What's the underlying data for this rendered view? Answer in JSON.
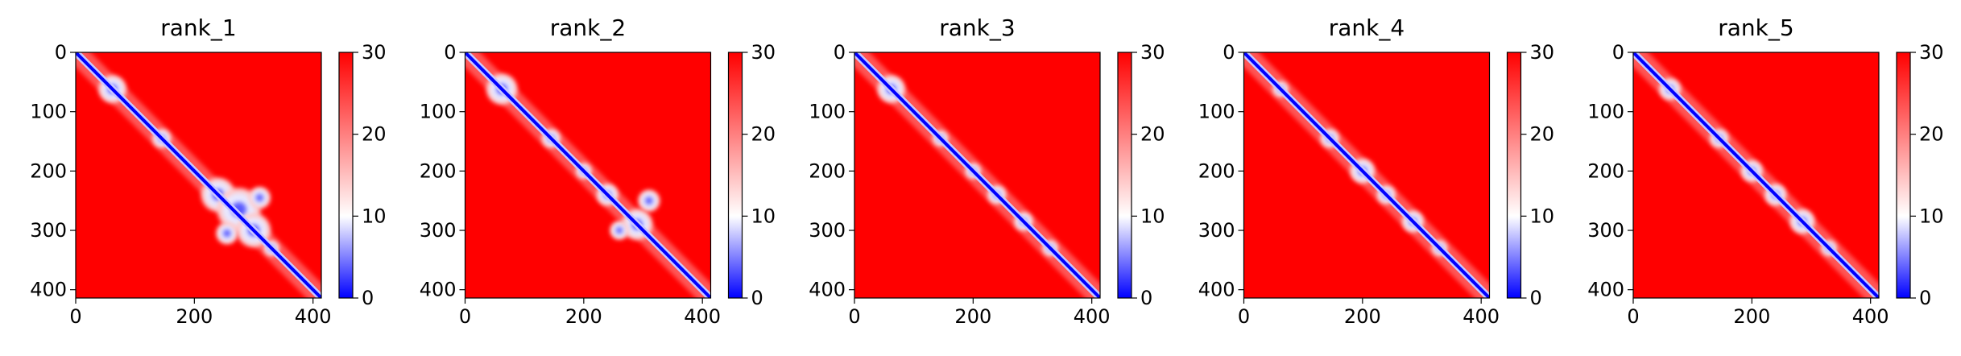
{
  "chart_data": [
    {
      "type": "heatmap",
      "title": "rank_1",
      "x_range": [
        0,
        414
      ],
      "y_range": [
        0,
        414
      ],
      "y_inverted": true,
      "x_ticks": [
        0,
        200,
        400
      ],
      "y_ticks": [
        0,
        100,
        200,
        300,
        400
      ],
      "colorbar": {
        "range": [
          0,
          30
        ],
        "ticks": [
          0,
          10,
          20,
          30
        ],
        "colormap": "bwr",
        "colors": [
          "#0000ff",
          "#ffffff",
          "#ff0000"
        ]
      },
      "low_distance_blocks": [
        [
          62,
          62,
          18
        ],
        [
          145,
          145,
          12
        ],
        [
          240,
          240,
          22
        ],
        [
          275,
          265,
          28
        ],
        [
          300,
          300,
          22
        ],
        [
          310,
          245,
          14
        ],
        [
          255,
          305,
          14
        ],
        [
          330,
          330,
          10
        ]
      ]
    },
    {
      "type": "heatmap",
      "title": "rank_2",
      "x_range": [
        0,
        414
      ],
      "y_range": [
        0,
        414
      ],
      "y_inverted": true,
      "x_ticks": [
        0,
        200,
        400
      ],
      "y_ticks": [
        0,
        100,
        200,
        300,
        400
      ],
      "colorbar": {
        "range": [
          0,
          30
        ],
        "ticks": [
          0,
          10,
          20,
          30
        ],
        "colormap": "bwr",
        "colors": [
          "#0000ff",
          "#ffffff",
          "#ff0000"
        ]
      },
      "low_distance_blocks": [
        [
          62,
          62,
          20
        ],
        [
          145,
          145,
          12
        ],
        [
          200,
          200,
          10
        ],
        [
          240,
          240,
          14
        ],
        [
          290,
          290,
          20
        ],
        [
          310,
          250,
          14
        ],
        [
          260,
          300,
          12
        ]
      ]
    },
    {
      "type": "heatmap",
      "title": "rank_3",
      "x_range": [
        0,
        414
      ],
      "y_range": [
        0,
        414
      ],
      "y_inverted": true,
      "x_ticks": [
        0,
        200,
        400
      ],
      "y_ticks": [
        0,
        100,
        200,
        300,
        400
      ],
      "colorbar": {
        "range": [
          0,
          30
        ],
        "ticks": [
          0,
          10,
          20,
          30
        ],
        "colormap": "bwr",
        "colors": [
          "#0000ff",
          "#ffffff",
          "#ff0000"
        ]
      },
      "low_distance_blocks": [
        [
          62,
          62,
          18
        ],
        [
          145,
          145,
          10
        ],
        [
          200,
          200,
          10
        ],
        [
          240,
          240,
          12
        ],
        [
          285,
          285,
          12
        ],
        [
          330,
          330,
          10
        ]
      ]
    },
    {
      "type": "heatmap",
      "title": "rank_4",
      "x_range": [
        0,
        414
      ],
      "y_range": [
        0,
        414
      ],
      "y_inverted": true,
      "x_ticks": [
        0,
        200,
        400
      ],
      "y_ticks": [
        0,
        100,
        200,
        300,
        400
      ],
      "colorbar": {
        "range": [
          0,
          30
        ],
        "ticks": [
          0,
          10,
          20,
          30
        ],
        "colormap": "bwr",
        "colors": [
          "#0000ff",
          "#ffffff",
          "#ff0000"
        ]
      },
      "low_distance_blocks": [
        [
          62,
          62,
          10
        ],
        [
          145,
          145,
          12
        ],
        [
          200,
          200,
          16
        ],
        [
          240,
          240,
          12
        ],
        [
          285,
          285,
          14
        ],
        [
          330,
          330,
          10
        ]
      ]
    },
    {
      "type": "heatmap",
      "title": "rank_5",
      "x_range": [
        0,
        414
      ],
      "y_range": [
        0,
        414
      ],
      "y_inverted": true,
      "x_ticks": [
        0,
        200,
        400
      ],
      "y_ticks": [
        0,
        100,
        200,
        300,
        400
      ],
      "colorbar": {
        "range": [
          0,
          30
        ],
        "ticks": [
          0,
          10,
          20,
          30
        ],
        "colormap": "bwr",
        "colors": [
          "#0000ff",
          "#ffffff",
          "#ff0000"
        ]
      },
      "low_distance_blocks": [
        [
          62,
          62,
          14
        ],
        [
          145,
          145,
          12
        ],
        [
          200,
          200,
          14
        ],
        [
          240,
          240,
          14
        ],
        [
          285,
          285,
          16
        ],
        [
          330,
          330,
          10
        ]
      ]
    }
  ]
}
